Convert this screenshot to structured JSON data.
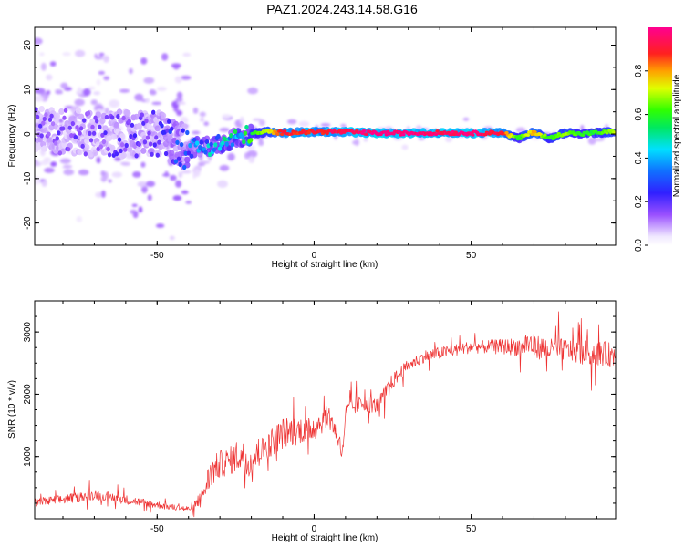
{
  "title": "PAZ1.2024.243.14.58.G16",
  "chart_data": [
    {
      "type": "heatmap",
      "xlabel": "Height of straight line (km)",
      "ylabel": "Frequency (Hz)",
      "xlim": [
        -89,
        96
      ],
      "ylim": [
        -25,
        24
      ],
      "xticks": [
        "-50",
        "0",
        "50"
      ],
      "yticks": [
        "-20",
        "-10",
        "0",
        "10",
        "20"
      ],
      "colorbar": {
        "label": "Normalized spectral amplitude",
        "range": [
          0,
          1
        ],
        "ticks": [
          "0.0",
          "0.2",
          "0.4",
          "0.6",
          "0.8"
        ],
        "colormap": "rainbow (white-violet-blue-cyan-green-yellow-orange-red-magenta)"
      },
      "ridge": {
        "description": "Signal concentrated near 0 Hz; scattered noise below about -40 km, single strong tone above about -10 km",
        "x": [
          -89,
          -70,
          -50,
          -40,
          -35,
          -30,
          -25,
          -20,
          -15,
          -10,
          0,
          10,
          20,
          30,
          40,
          50,
          60,
          65,
          70,
          75,
          80,
          85,
          90,
          96
        ],
        "y": [
          1,
          0,
          0,
          -3,
          -3,
          -2,
          -1,
          0,
          0.5,
          0.3,
          0.5,
          0.5,
          0.2,
          0.2,
          0.3,
          0.2,
          0.3,
          -1,
          0.5,
          -1,
          0.3,
          0,
          0.3,
          0.5
        ],
        "amplitude": [
          0.2,
          0.2,
          0.25,
          0.35,
          0.45,
          0.5,
          0.55,
          0.6,
          0.7,
          0.9,
          0.9,
          0.95,
          1.0,
          1.0,
          0.95,
          1.0,
          0.9,
          0.6,
          0.8,
          0.6,
          0.7,
          0.6,
          0.6,
          0.7
        ]
      }
    },
    {
      "type": "line",
      "xlabel": "Height of straight line (km)",
      "ylabel": "SNR (10 * v/v)",
      "xlim": [
        -89,
        96
      ],
      "ylim": [
        0,
        3500
      ],
      "xticks": [
        "-50",
        "0",
        "50"
      ],
      "yticks": [
        "1000",
        "2000",
        "3000"
      ],
      "series": [
        {
          "color": "#ee3333",
          "x": [
            -89,
            -80,
            -70,
            -60,
            -50,
            -45,
            -40,
            -36,
            -33,
            -30,
            -27,
            -24,
            -20,
            -15,
            -10,
            -5,
            0,
            5,
            8,
            9,
            10,
            15,
            20,
            25,
            30,
            35,
            40,
            45,
            50,
            55,
            60,
            65,
            68,
            70,
            75,
            80,
            85,
            90,
            96
          ],
          "y": [
            250,
            300,
            380,
            300,
            220,
            180,
            150,
            300,
            700,
            850,
            900,
            1000,
            900,
            1150,
            1350,
            1400,
            1450,
            1650,
            1200,
            1000,
            1700,
            1850,
            1800,
            2200,
            2450,
            2600,
            2650,
            2700,
            2750,
            2750,
            2750,
            2750,
            2800,
            2750,
            2700,
            2700,
            2650,
            2650,
            2600
          ],
          "spread": [
            150,
            150,
            170,
            150,
            120,
            100,
            100,
            300,
            500,
            450,
            450,
            550,
            450,
            450,
            500,
            450,
            450,
            350,
            300,
            250,
            300,
            250,
            250,
            250,
            200,
            200,
            200,
            200,
            200,
            220,
            250,
            300,
            450,
            400,
            350,
            350,
            400,
            400,
            400
          ]
        }
      ]
    }
  ]
}
